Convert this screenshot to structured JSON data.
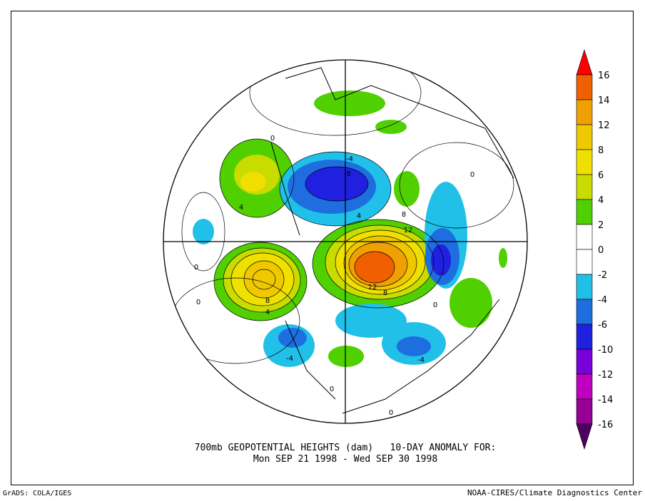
{
  "title": {
    "line1": "700mb GEOPOTENTIAL HEIGHTS (dam)   10-DAY ANOMALY FOR:",
    "line2": "Mon SEP 21 1998 - Wed SEP 30 1998"
  },
  "footer": {
    "left": "GrADS: COLA/IGES",
    "right": "NOAA-CIRES/Climate Diagnostics Center"
  },
  "colorbar": {
    "labels": [
      16,
      14,
      12,
      8,
      6,
      4,
      2,
      0,
      -2,
      -4,
      -6,
      -10,
      -12,
      -14,
      -16
    ],
    "colors": [
      "#ff0000",
      "#f06000",
      "#f0a000",
      "#f0c800",
      "#f0e000",
      "#c8dc00",
      "#50d000",
      "#ffffff",
      "#ffffff",
      "#20c0e8",
      "#1e6ee0",
      "#2020e0",
      "#7800d8",
      "#c000c0",
      "#960096",
      "#500060"
    ]
  },
  "contour_labels": [
    "0",
    "-4",
    "-8",
    "4",
    "0",
    "0",
    "8",
    "4",
    "12",
    "8",
    "12",
    "8",
    "-4",
    "-4",
    "0",
    "0",
    "0",
    "0",
    "4"
  ]
}
